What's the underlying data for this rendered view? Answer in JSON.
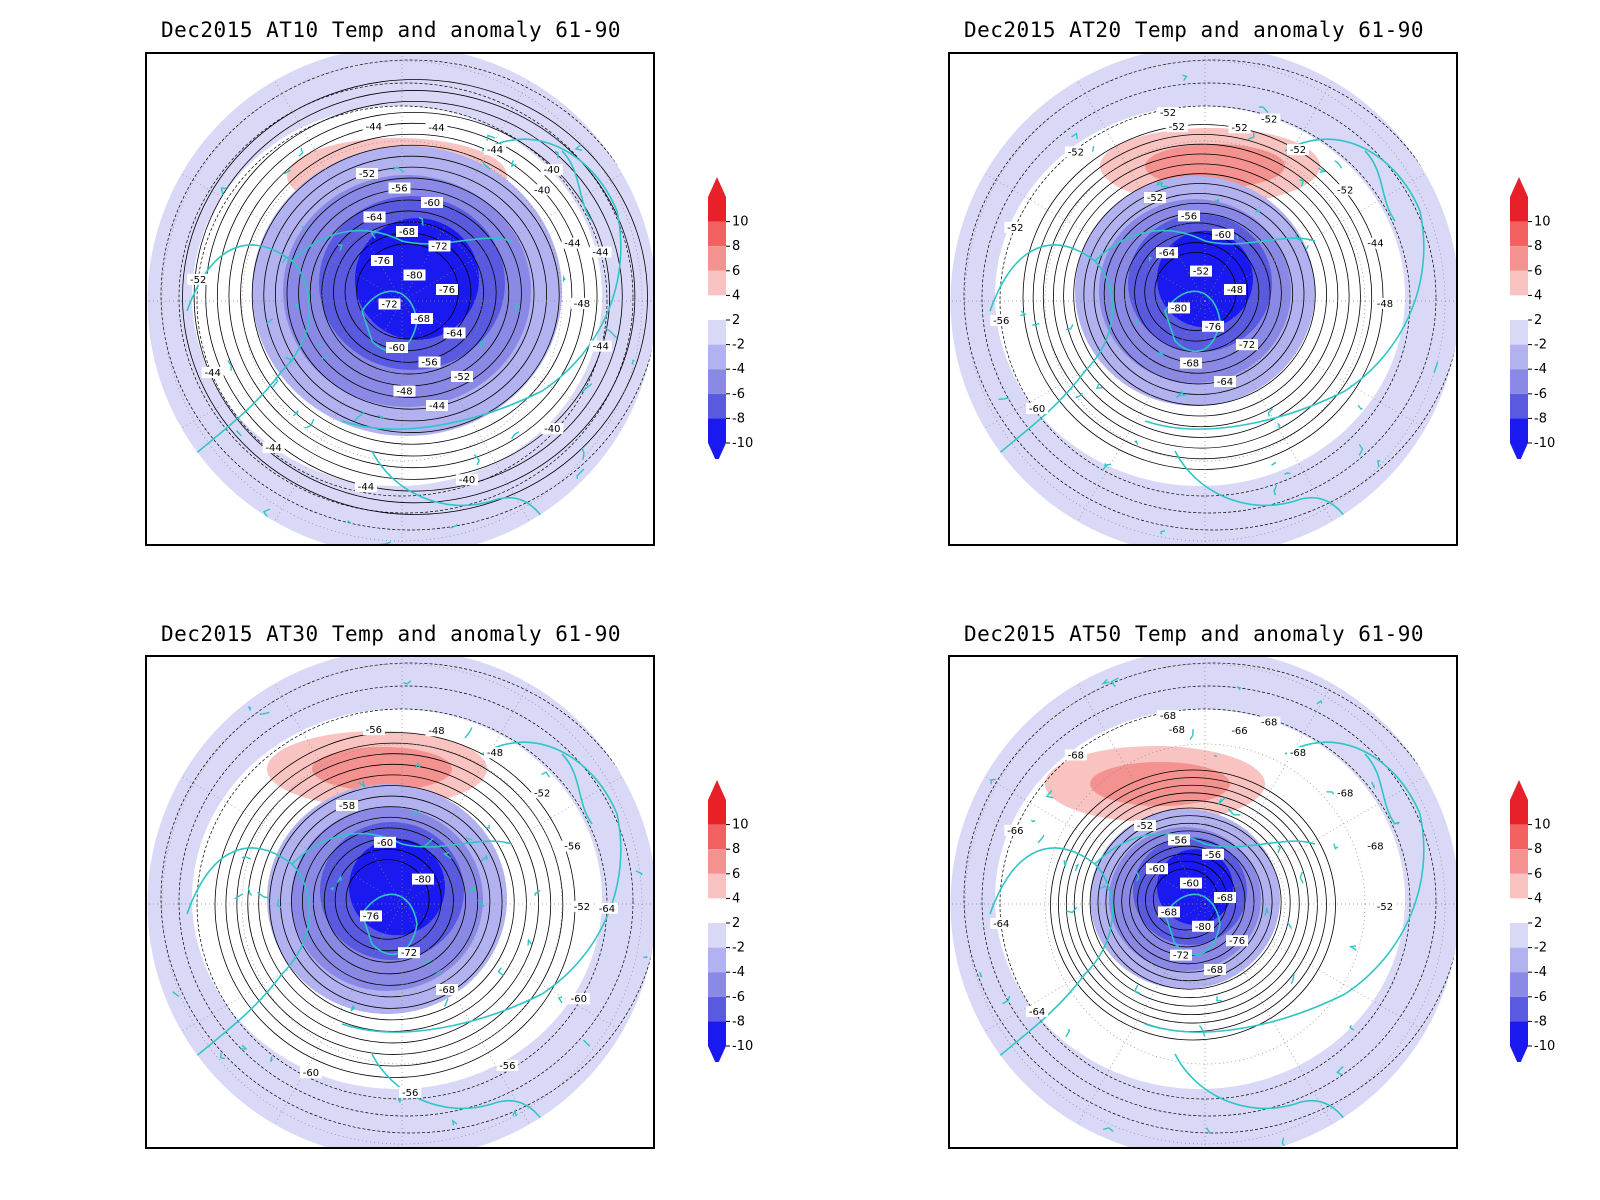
{
  "panels": [
    {
      "title": "Dec2015 AT10 Temp and anomaly 61-90",
      "contour_labels": [
        "-44",
        "-44",
        "-44",
        "-40",
        "-44",
        "-48",
        "-52",
        "-56",
        "-60",
        "-64",
        "-68",
        "-72",
        "-76",
        "-80",
        "-76",
        "-72",
        "-68",
        "-64",
        "-60",
        "-56",
        "-52",
        "-48",
        "-44",
        "-40",
        "-44",
        "-44",
        "-40",
        "-40",
        "-44",
        "-44",
        "-44",
        "-52"
      ]
    },
    {
      "title": "Dec2015 AT20 Temp and anomaly 61-90",
      "contour_labels": [
        "-52",
        "-52",
        "-52",
        "-52",
        "-44",
        "-48",
        "-52",
        "-56",
        "-60",
        "-64",
        "-52",
        "-48",
        "-80",
        "-76",
        "-72",
        "-68",
        "-64",
        "-60",
        "-56",
        "-52",
        "-52",
        "-52",
        "-52"
      ]
    },
    {
      "title": "Dec2015 AT30 Temp and anomaly 61-90",
      "contour_labels": [
        "-56",
        "-48",
        "-48",
        "-52",
        "-56",
        "-52",
        "-58",
        "-60",
        "-80",
        "-76",
        "-72",
        "-68",
        "-64",
        "-60",
        "-56",
        "-56",
        "-60"
      ]
    },
    {
      "title": "Dec2015 AT50 Temp and anomaly 61-90",
      "contour_labels": [
        "-68",
        "-66",
        "-68",
        "-68",
        "-68",
        "-52",
        "-52",
        "-56",
        "-56",
        "-60",
        "-60",
        "-68",
        "-68",
        "-80",
        "-76",
        "-72",
        "-68",
        "-64",
        "-64",
        "-66",
        "-68",
        "-68",
        "-68"
      ]
    }
  ],
  "colorbar": {
    "labels": [
      "10",
      "8",
      "6",
      "4",
      "2",
      "-2",
      "-4",
      "-6",
      "-8",
      "-10"
    ],
    "colors": [
      "#e8202a",
      "#f0615f",
      "#f4928f",
      "#f8c3c0",
      "#ffffff",
      "#d9d9f7",
      "#b2b2f0",
      "#8a8ae6",
      "#5a5ae0",
      "#1a1af0"
    ],
    "top_arrow_color": "#e8202a",
    "bottom_arrow_color": "#1a1af0"
  },
  "coast_color": "#2fc5c5"
}
